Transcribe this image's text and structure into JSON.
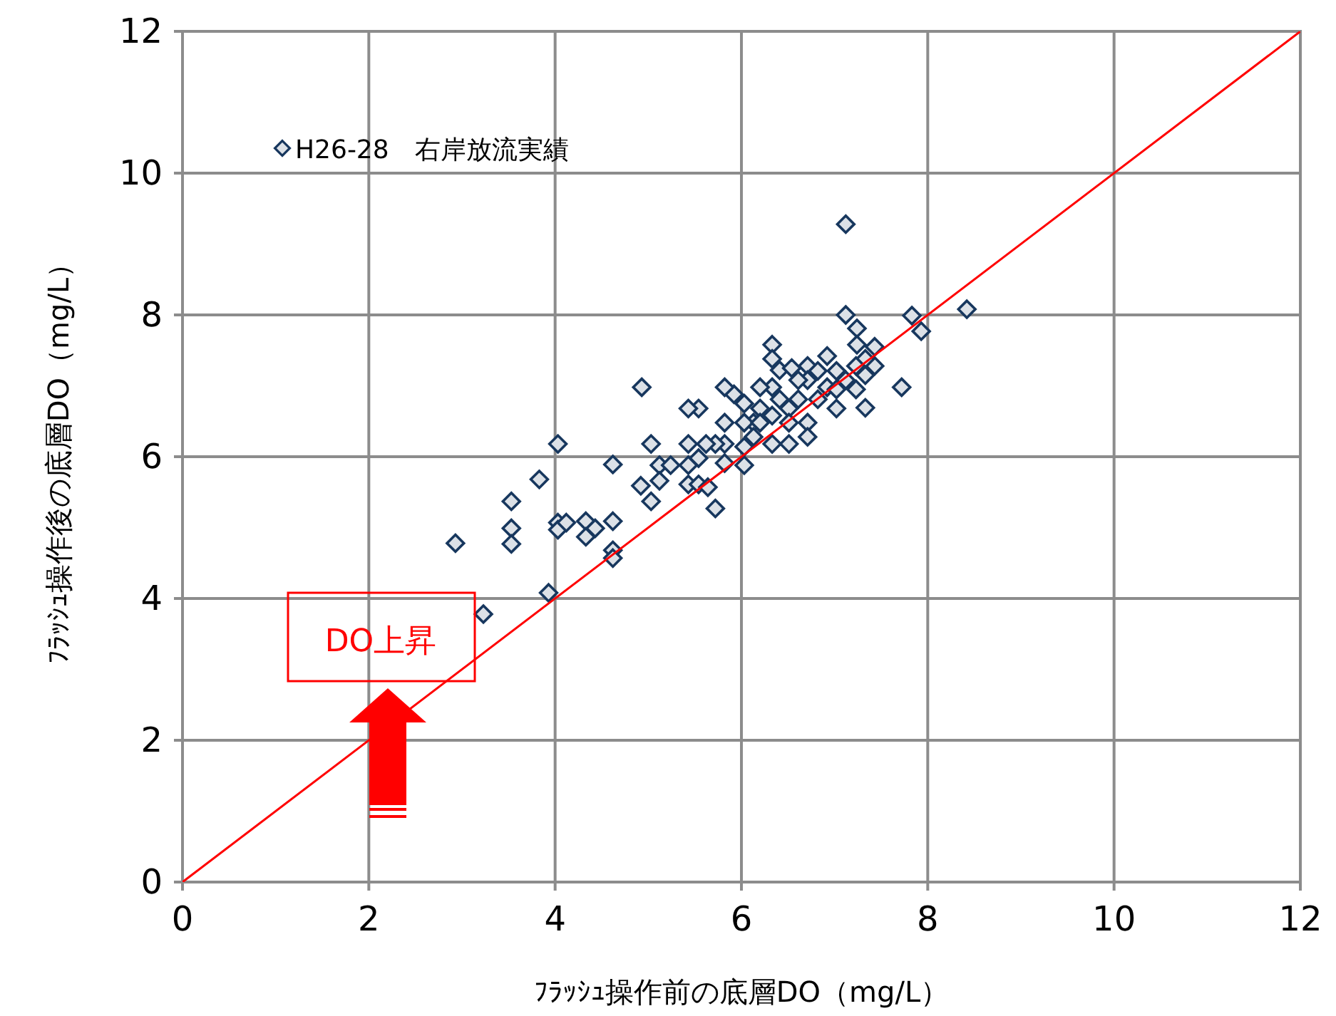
{
  "chart_data": {
    "type": "scatter",
    "xlabel": "ﾌﾗｯｼｭ操作前の底層DO（mg/L）",
    "ylabel": "ﾌﾗｯｼｭ操作後の底層DO（mg/L）",
    "xlim": [
      0,
      12
    ],
    "ylim": [
      0,
      12
    ],
    "xticks": [
      0,
      2,
      4,
      6,
      8,
      10,
      12
    ],
    "yticks": [
      0,
      2,
      4,
      6,
      8,
      10,
      12
    ],
    "grid": true,
    "legend": "top left",
    "marker": "diamond",
    "annotations": [
      "DO上昇"
    ],
    "series": [
      {
        "name": "H26-28　右岸放流実績",
        "color": "#17375e",
        "x": [
          2.93,
          3.23,
          3.53,
          3.53,
          3.53,
          3.83,
          3.93,
          4.03,
          4.03,
          4.03,
          4.12,
          4.33,
          4.33,
          4.43,
          4.62,
          4.62,
          4.62,
          4.62,
          4.93,
          4.92,
          5.03,
          5.03,
          5.12,
          5.12,
          5.24,
          7.12,
          7.12,
          7.83,
          7.93,
          8.42,
          7.72,
          7.33,
          7.24,
          7.24,
          7.43,
          7.43,
          7.33,
          7.23,
          7.12,
          6.92,
          7.02,
          6.92,
          6.82,
          6.71,
          6.71,
          6.71,
          6.71,
          6.61,
          6.51,
          6.51,
          6.51,
          6.41,
          6.33,
          6.33,
          6.33,
          6.33,
          6.33,
          6.2,
          6.2,
          6.13,
          6.13,
          6.03,
          6.03,
          6.03,
          6.03,
          5.92,
          5.82,
          5.82,
          5.82,
          5.82,
          5.72,
          5.62,
          5.54,
          5.43,
          5.43,
          5.43,
          5.43,
          5.54,
          5.54,
          5.64,
          5.72,
          7.02,
          7.02,
          6.82,
          6.61,
          6.41,
          6.2,
          7.23,
          7.33,
          6.54
        ],
        "values": [
          4.78,
          3.78,
          5.37,
          4.99,
          4.77,
          5.68,
          4.08,
          6.18,
          5.07,
          4.97,
          5.07,
          5.09,
          4.87,
          4.99,
          5.89,
          5.09,
          4.68,
          4.57,
          6.98,
          5.59,
          6.18,
          5.37,
          5.88,
          5.66,
          5.88,
          9.28,
          8.0,
          7.99,
          7.77,
          8.08,
          6.98,
          6.69,
          7.81,
          7.58,
          7.55,
          7.28,
          7.38,
          7.28,
          7.08,
          7.42,
          7.21,
          6.98,
          6.81,
          7.28,
          7.08,
          6.48,
          6.28,
          7.08,
          6.68,
          6.48,
          6.18,
          7.22,
          7.58,
          7.38,
          6.98,
          6.58,
          6.18,
          6.98,
          6.68,
          6.48,
          6.28,
          6.75,
          6.48,
          6.14,
          5.88,
          6.88,
          6.98,
          6.48,
          6.18,
          5.91,
          6.18,
          6.18,
          6.68,
          6.68,
          6.18,
          5.88,
          5.61,
          5.98,
          5.61,
          5.57,
          5.27,
          6.68,
          6.95,
          7.21,
          6.81,
          6.81,
          6.48,
          6.95,
          7.15,
          7.25
        ]
      },
      {
        "type": "line",
        "color": "#ff0000",
        "marker": "none",
        "x": [
          0,
          12
        ],
        "values": [
          0,
          12
        ]
      }
    ]
  }
}
